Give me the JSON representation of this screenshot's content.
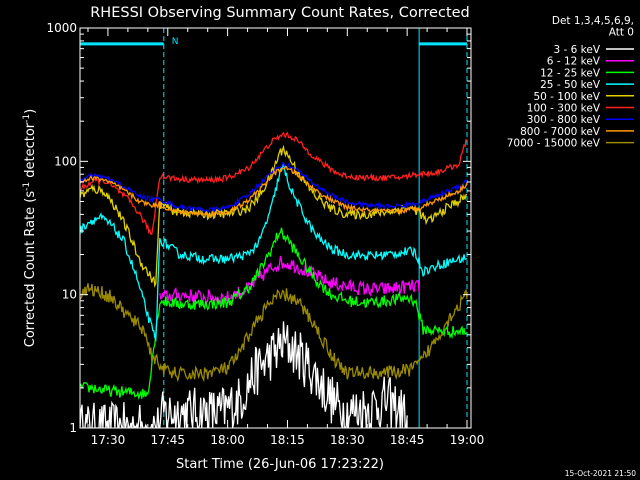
{
  "chart_data": {
    "type": "line",
    "title": "RHESSI Observing Summary Count Rates, Corrected",
    "xlabel": "Start Time (26-Jun-06 17:23:22)",
    "ylabel_main": "Corrected Count Rate (s",
    "ylabel_sup1": "-1",
    "ylabel_mid": " detector",
    "ylabel_sup2": "-1",
    "ylabel_end": ")",
    "yscale": "log",
    "ylim": [
      1,
      1000
    ],
    "xlim": [
      "17:23",
      "19:01"
    ],
    "yticks": [
      {
        "v": 1,
        "label": "1"
      },
      {
        "v": 10,
        "label": "10"
      },
      {
        "v": 100,
        "label": "100"
      },
      {
        "v": 1000,
        "label": "1000"
      }
    ],
    "xticks": [
      {
        "t": "17:30",
        "label": "17:30"
      },
      {
        "t": "17:45",
        "label": "17:45"
      },
      {
        "t": "18:00",
        "label": "18:00"
      },
      {
        "t": "18:15",
        "label": "18:15"
      },
      {
        "t": "18:30",
        "label": "18:30"
      },
      {
        "t": "18:45",
        "label": "18:45"
      },
      {
        "t": "19:00",
        "label": "19:00"
      }
    ],
    "legend_header": [
      "Det 1,3,4,5,6,9,",
      "Att 0"
    ],
    "legend_position": "right",
    "footer": "15-Oct-2021 21:50",
    "annotations": [
      {
        "text": "N",
        "t": "17:45"
      }
    ],
    "night_bars": [
      {
        "start": "17:23",
        "end": "17:44"
      },
      {
        "start": "18:48",
        "end": "19:00"
      }
    ],
    "night_bar_level": 760,
    "saa_lines": [
      "17:23",
      "17:44",
      "18:48",
      "19:00"
    ],
    "series": [
      {
        "name": "3 - 6 keV",
        "color": "#ffffff",
        "points": [
          [
            "17:23",
            1
          ],
          [
            "17:43",
            1
          ],
          [
            "17:44",
            1.3
          ],
          [
            "17:58",
            1.3
          ],
          [
            "18:03",
            1.6
          ],
          [
            "18:06",
            2.4
          ],
          [
            "18:10",
            3.3
          ],
          [
            "18:14",
            4.3
          ],
          [
            "18:16",
            4.0
          ],
          [
            "18:20",
            3.0
          ],
          [
            "18:24",
            2.0
          ],
          [
            "18:27",
            1.5
          ],
          [
            "18:30",
            1.3
          ],
          [
            "18:35",
            1.4
          ],
          [
            "18:40",
            1.6
          ],
          [
            "18:44",
            1.3
          ],
          [
            "18:45",
            1
          ]
        ]
      },
      {
        "name": "6 - 12 keV",
        "color": "#ff00ff",
        "points": [
          [
            "17:43",
            9.5
          ],
          [
            "17:48",
            10
          ],
          [
            "17:55",
            9.5
          ],
          [
            "18:00",
            9.5
          ],
          [
            "18:05",
            11
          ],
          [
            "18:10",
            15
          ],
          [
            "18:13",
            17.5
          ],
          [
            "18:16",
            17
          ],
          [
            "18:20",
            15
          ],
          [
            "18:25",
            12.5
          ],
          [
            "18:30",
            11.5
          ],
          [
            "18:35",
            11
          ],
          [
            "18:40",
            11
          ],
          [
            "18:45",
            11.5
          ],
          [
            "18:48",
            11.5
          ]
        ]
      },
      {
        "name": "12 - 25 keV",
        "color": "#00ff00",
        "points": [
          [
            "17:23",
            2
          ],
          [
            "17:26",
            2
          ],
          [
            "17:30",
            1.9
          ],
          [
            "17:40",
            1.8
          ],
          [
            "17:43",
            9
          ],
          [
            "17:48",
            8.5
          ],
          [
            "17:55",
            8.5
          ],
          [
            "18:00",
            8.7
          ],
          [
            "18:05",
            11
          ],
          [
            "18:08",
            15
          ],
          [
            "18:11",
            22
          ],
          [
            "18:13",
            30
          ],
          [
            "18:15",
            26
          ],
          [
            "18:18",
            19
          ],
          [
            "18:22",
            13
          ],
          [
            "18:26",
            10
          ],
          [
            "18:30",
            9
          ],
          [
            "18:35",
            8.7
          ],
          [
            "18:40",
            9
          ],
          [
            "18:45",
            9.5
          ],
          [
            "18:47",
            9
          ],
          [
            "18:49",
            5.5
          ],
          [
            "18:55",
            5.3
          ],
          [
            "19:00",
            5.3
          ]
        ]
      },
      {
        "name": "25 - 50 keV",
        "color": "#00ffff",
        "points": [
          [
            "17:23",
            30
          ],
          [
            "17:25",
            35
          ],
          [
            "17:28",
            38
          ],
          [
            "17:31",
            33
          ],
          [
            "17:34",
            25
          ],
          [
            "17:37",
            14
          ],
          [
            "17:40",
            7
          ],
          [
            "17:42",
            4.5
          ],
          [
            "17:43",
            26
          ],
          [
            "17:48",
            20
          ],
          [
            "17:55",
            18.5
          ],
          [
            "18:00",
            18.5
          ],
          [
            "18:05",
            20
          ],
          [
            "18:08",
            25
          ],
          [
            "18:11",
            45
          ],
          [
            "18:13",
            80
          ],
          [
            "18:14",
            90
          ],
          [
            "18:16",
            60
          ],
          [
            "18:19",
            40
          ],
          [
            "18:22",
            28
          ],
          [
            "18:26",
            22
          ],
          [
            "18:30",
            20
          ],
          [
            "18:35",
            19.5
          ],
          [
            "18:40",
            20
          ],
          [
            "18:45",
            21
          ],
          [
            "18:47",
            21
          ],
          [
            "18:49",
            15
          ],
          [
            "18:55",
            17.5
          ],
          [
            "19:00",
            19
          ]
        ]
      },
      {
        "name": "50 - 100 keV",
        "color": "#e0d000",
        "points": [
          [
            "17:23",
            55
          ],
          [
            "17:26",
            62
          ],
          [
            "17:29",
            60
          ],
          [
            "17:32",
            45
          ],
          [
            "17:35",
            30
          ],
          [
            "17:38",
            18
          ],
          [
            "17:42",
            12
          ],
          [
            "17:43",
            48
          ],
          [
            "17:47",
            42
          ],
          [
            "17:55",
            40
          ],
          [
            "18:00",
            40.5
          ],
          [
            "18:05",
            44
          ],
          [
            "18:08",
            55
          ],
          [
            "18:11",
            80
          ],
          [
            "18:13",
            115
          ],
          [
            "18:14",
            125
          ],
          [
            "18:16",
            100
          ],
          [
            "18:19",
            72
          ],
          [
            "18:22",
            55
          ],
          [
            "18:26",
            44
          ],
          [
            "18:30",
            40
          ],
          [
            "18:35",
            40
          ],
          [
            "18:40",
            42
          ],
          [
            "18:45",
            45
          ],
          [
            "18:48",
            42
          ],
          [
            "18:50",
            35
          ],
          [
            "18:55",
            45
          ],
          [
            "19:00",
            55
          ]
        ]
      },
      {
        "name": "100 - 300 keV",
        "color": "#ff2020",
        "points": [
          [
            "17:23",
            62
          ],
          [
            "17:26",
            70
          ],
          [
            "17:29",
            72
          ],
          [
            "17:32",
            62
          ],
          [
            "17:35",
            52
          ],
          [
            "17:38",
            40
          ],
          [
            "17:41",
            28
          ],
          [
            "17:43",
            78
          ],
          [
            "17:47",
            74
          ],
          [
            "17:55",
            72
          ],
          [
            "18:00",
            75
          ],
          [
            "18:05",
            88
          ],
          [
            "18:08",
            110
          ],
          [
            "18:11",
            140
          ],
          [
            "18:14",
            160
          ],
          [
            "18:17",
            148
          ],
          [
            "18:20",
            120
          ],
          [
            "18:24",
            95
          ],
          [
            "18:28",
            80
          ],
          [
            "18:32",
            76
          ],
          [
            "18:38",
            75
          ],
          [
            "18:44",
            76
          ],
          [
            "18:47",
            80
          ],
          [
            "18:52",
            82
          ],
          [
            "18:58",
            95
          ],
          [
            "19:00",
            150
          ]
        ]
      },
      {
        "name": "300 - 800 keV",
        "color": "#0000ff",
        "points": [
          [
            "17:23",
            72
          ],
          [
            "17:26",
            78
          ],
          [
            "17:29",
            76
          ],
          [
            "17:32",
            70
          ],
          [
            "17:35",
            62
          ],
          [
            "17:38",
            55
          ],
          [
            "17:41",
            52
          ],
          [
            "17:43",
            52
          ],
          [
            "17:47",
            46
          ],
          [
            "17:55",
            43
          ],
          [
            "18:00",
            45
          ],
          [
            "18:05",
            55
          ],
          [
            "18:09",
            72
          ],
          [
            "18:12",
            88
          ],
          [
            "18:14",
            95
          ],
          [
            "18:17",
            88
          ],
          [
            "18:21",
            70
          ],
          [
            "18:25",
            58
          ],
          [
            "18:30",
            49
          ],
          [
            "18:35",
            47
          ],
          [
            "18:40",
            46
          ],
          [
            "18:45",
            47
          ],
          [
            "18:48",
            49
          ],
          [
            "18:53",
            56
          ],
          [
            "18:58",
            65
          ],
          [
            "19:00",
            72
          ]
        ]
      },
      {
        "name": "800 - 7000 keV",
        "color": "#ff9900",
        "points": [
          [
            "17:23",
            70
          ],
          [
            "17:26",
            75
          ],
          [
            "17:29",
            73
          ],
          [
            "17:32",
            66
          ],
          [
            "17:35",
            58
          ],
          [
            "17:38",
            50
          ],
          [
            "17:41",
            47
          ],
          [
            "17:43",
            47
          ],
          [
            "17:47",
            42
          ],
          [
            "17:55",
            40
          ],
          [
            "18:00",
            41.5
          ],
          [
            "18:05",
            50
          ],
          [
            "18:09",
            66
          ],
          [
            "18:12",
            82
          ],
          [
            "18:14",
            90
          ],
          [
            "18:17",
            82
          ],
          [
            "18:21",
            64
          ],
          [
            "18:25",
            53
          ],
          [
            "18:30",
            45
          ],
          [
            "18:35",
            43
          ],
          [
            "18:40",
            42
          ],
          [
            "18:45",
            43
          ],
          [
            "18:48",
            45
          ],
          [
            "18:53",
            52
          ],
          [
            "18:58",
            60
          ],
          [
            "19:00",
            68
          ]
        ]
      },
      {
        "name": "7000 - 15000 keV",
        "color": "#9a8a00",
        "points": [
          [
            "17:23",
            10
          ],
          [
            "17:25",
            11
          ],
          [
            "17:28",
            10.5
          ],
          [
            "17:31",
            9.5
          ],
          [
            "17:33",
            8
          ],
          [
            "17:36",
            6.5
          ],
          [
            "17:39",
            5.5
          ],
          [
            "17:41",
            3.5
          ],
          [
            "17:43",
            3
          ],
          [
            "17:45",
            2.6
          ],
          [
            "17:50",
            2.5
          ],
          [
            "17:55",
            2.6
          ],
          [
            "18:00",
            2.8
          ],
          [
            "18:03",
            3.6
          ],
          [
            "18:06",
            5.5
          ],
          [
            "18:09",
            7.5
          ],
          [
            "18:12",
            9.5
          ],
          [
            "18:15",
            10
          ],
          [
            "18:18",
            8.5
          ],
          [
            "18:21",
            6.5
          ],
          [
            "18:24",
            4.5
          ],
          [
            "18:27",
            3.2
          ],
          [
            "18:30",
            2.6
          ],
          [
            "18:35",
            2.6
          ],
          [
            "18:40",
            2.6
          ],
          [
            "18:45",
            2.7
          ],
          [
            "18:48",
            3.0
          ],
          [
            "18:52",
            4.5
          ],
          [
            "18:56",
            7
          ],
          [
            "19:00",
            10
          ]
        ]
      }
    ]
  }
}
